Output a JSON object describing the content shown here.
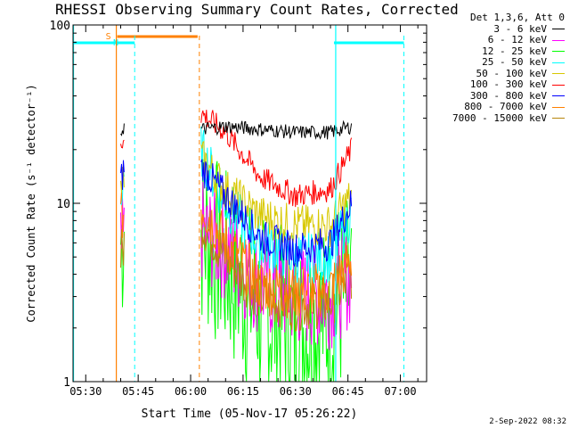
{
  "title": "RHESSI Observing Summary Count Rates, Corrected",
  "footer_date": "2-Sep-2022 08:32",
  "legend": {
    "header": "Det 1,3,6, Att 0",
    "entries": [
      {
        "label": "3 - 6 keV",
        "color": "#000000"
      },
      {
        "label": "6 - 12 keV",
        "color": "#ff00ff"
      },
      {
        "label": "12 - 25 keV",
        "color": "#00ff00"
      },
      {
        "label": "25 - 50 keV",
        "color": "#00ffff"
      },
      {
        "label": "50 - 100 keV",
        "color": "#d8c800"
      },
      {
        "label": "100 - 300 keV",
        "color": "#ff0000"
      },
      {
        "label": "300 - 800 keV",
        "color": "#0000ff"
      },
      {
        "label": "800 - 7000 keV",
        "color": "#ff8000"
      },
      {
        "label": "7000 - 15000 keV",
        "color": "#b8860b"
      }
    ]
  },
  "chart_data": {
    "type": "line",
    "title": "RHESSI Observing Summary Count Rates, Corrected",
    "xlabel": "Start Time (05-Nov-17 05:26:22)",
    "ylabel": "Corrected Count Rate (s⁻¹ detector⁻¹)",
    "y_scale": "log",
    "ylim": [
      1,
      100
    ],
    "xlim": [
      "05:26:22",
      "07:07:30"
    ],
    "x_ticks": [
      "05:30",
      "05:45",
      "06:00",
      "06:15",
      "06:30",
      "06:45",
      "07:00"
    ],
    "y_ticks": [
      "1",
      "10",
      "100"
    ],
    "annotations": {
      "saa": {
        "label": "S",
        "start": "05:39",
        "end": "06:02",
        "color": "#ff8000"
      },
      "night": [
        {
          "label": "N",
          "start": "05:26",
          "end": "05:44",
          "color": "#00ffff"
        },
        {
          "label": "",
          "start": "06:41",
          "end": "07:01",
          "color": "#00ffff"
        }
      ],
      "solid_vertical_lines": [
        {
          "time": "05:26:30",
          "color": "#00ffff"
        },
        {
          "time": "05:38:45",
          "color": "#ff8000"
        },
        {
          "time": "06:41:30",
          "color": "#00ffff"
        }
      ],
      "dashed_vertical_lines": [
        {
          "time": "05:44:00",
          "color": "#00ffff"
        },
        {
          "time": "06:02:30",
          "color": "#ff8000"
        },
        {
          "time": "07:01:00",
          "color": "#00ffff"
        }
      ]
    },
    "series": [
      {
        "name": "3 - 6 keV",
        "color": "#000000",
        "spread": 0.04,
        "points": [
          [
            "05:40:00",
            25
          ],
          [
            "05:41:00",
            27
          ],
          [
            "06:03:00",
            26
          ],
          [
            "06:10:00",
            27
          ],
          [
            "06:20:00",
            26
          ],
          [
            "06:30:00",
            25
          ],
          [
            "06:40:00",
            25
          ],
          [
            "06:46:00",
            27
          ]
        ]
      },
      {
        "name": "6 - 12 keV",
        "color": "#ff00ff",
        "spread": 0.3,
        "points": [
          [
            "05:40:00",
            5
          ],
          [
            "05:41:00",
            6
          ],
          [
            "06:03:00",
            7
          ],
          [
            "06:10:00",
            5.5
          ],
          [
            "06:20:00",
            3.5
          ],
          [
            "06:30:00",
            3
          ],
          [
            "06:40:00",
            3
          ],
          [
            "06:46:00",
            4
          ]
        ]
      },
      {
        "name": "12 - 25 keV",
        "color": "#00ff00",
        "spread": 0.55,
        "points": [
          [
            "05:40:00",
            6
          ],
          [
            "05:41:00",
            8
          ],
          [
            "06:03:00",
            7
          ],
          [
            "06:10:00",
            4.5
          ],
          [
            "06:20:00",
            2.5
          ],
          [
            "06:30:00",
            2
          ],
          [
            "06:40:00",
            2.2
          ],
          [
            "06:46:00",
            3.5
          ]
        ]
      },
      {
        "name": "25 - 50 keV",
        "color": "#00ffff",
        "spread": 0.15,
        "points": [
          [
            "05:40:00",
            10
          ],
          [
            "05:41:00",
            12
          ],
          [
            "06:03:00",
            20
          ],
          [
            "06:10:00",
            10
          ],
          [
            "06:20:00",
            6
          ],
          [
            "06:30:00",
            5
          ],
          [
            "06:40:00",
            5
          ],
          [
            "06:46:00",
            9
          ]
        ]
      },
      {
        "name": "50 - 100 keV",
        "color": "#d8c800",
        "spread": 0.12,
        "points": [
          [
            "05:40:00",
            12
          ],
          [
            "05:41:00",
            14
          ],
          [
            "06:03:00",
            18
          ],
          [
            "06:10:00",
            12
          ],
          [
            "06:20:00",
            8.5
          ],
          [
            "06:30:00",
            7.5
          ],
          [
            "06:40:00",
            7.5
          ],
          [
            "06:46:00",
            11
          ]
        ]
      },
      {
        "name": "100 - 300 keV",
        "color": "#ff0000",
        "spread": 0.07,
        "points": [
          [
            "05:40:00",
            20
          ],
          [
            "05:41:00",
            25
          ],
          [
            "06:03:00",
            32
          ],
          [
            "06:10:00",
            25
          ],
          [
            "06:20:00",
            14
          ],
          [
            "06:30:00",
            11
          ],
          [
            "06:40:00",
            12
          ],
          [
            "06:46:00",
            20
          ]
        ]
      },
      {
        "name": "300 - 800 keV",
        "color": "#0000ff",
        "spread": 0.1,
        "points": [
          [
            "05:40:00",
            13
          ],
          [
            "05:41:00",
            16
          ],
          [
            "06:03:00",
            16
          ],
          [
            "06:10:00",
            11
          ],
          [
            "06:20:00",
            6.5
          ],
          [
            "06:30:00",
            5.5
          ],
          [
            "06:40:00",
            6
          ],
          [
            "06:46:00",
            10
          ]
        ]
      },
      {
        "name": "800 - 7000 keV",
        "color": "#ff8000",
        "spread": 0.16,
        "points": [
          [
            "05:40:00",
            8
          ],
          [
            "05:41:00",
            9
          ],
          [
            "06:03:00",
            10
          ],
          [
            "06:10:00",
            6
          ],
          [
            "06:20:00",
            3.5
          ],
          [
            "06:30:00",
            3.2
          ],
          [
            "06:40:00",
            3.3
          ],
          [
            "06:46:00",
            5
          ]
        ]
      },
      {
        "name": "7000 - 15000 keV",
        "color": "#b8860b",
        "spread": 0.15,
        "points": [
          [
            "05:40:00",
            5
          ],
          [
            "05:41:00",
            6
          ],
          [
            "06:03:00",
            8
          ],
          [
            "06:10:00",
            5
          ],
          [
            "06:20:00",
            3
          ],
          [
            "06:30:00",
            2.7
          ],
          [
            "06:40:00",
            2.8
          ],
          [
            "06:46:00",
            4
          ]
        ]
      }
    ]
  }
}
